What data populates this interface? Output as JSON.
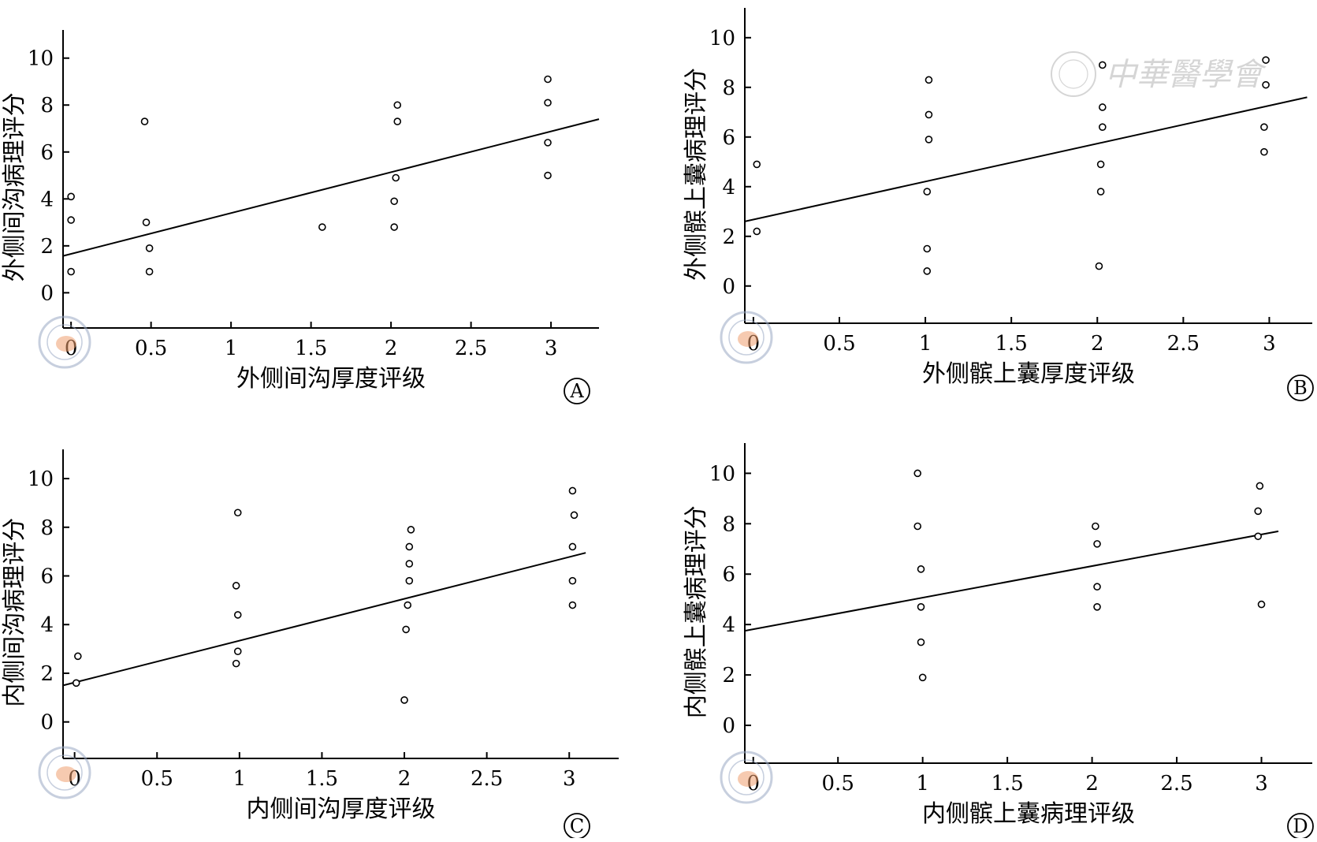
{
  "watermark": {
    "text": "中華醫學會"
  },
  "chart_data": [
    {
      "id": "A",
      "type": "scatter",
      "panel_label": "A",
      "xlabel": "外侧间沟厚度评级",
      "ylabel": "外侧间沟病理评分",
      "xlim": [
        -0.05,
        3.3
      ],
      "ylim": [
        -1.5,
        11.2
      ],
      "xticks": [
        0,
        0.5,
        1,
        1.5,
        2,
        2.5,
        3
      ],
      "xtick_labels": [
        "0",
        "0.5",
        "1",
        "1.5",
        "2",
        "2.5",
        "3"
      ],
      "yticks": [
        0,
        2,
        4,
        6,
        8,
        10
      ],
      "ytick_labels": [
        "0",
        "2",
        "4",
        "6",
        "8",
        "10"
      ],
      "points": [
        [
          0,
          0.9
        ],
        [
          0,
          3.1
        ],
        [
          0,
          4.1
        ],
        [
          0.46,
          7.3
        ],
        [
          0.47,
          3.0
        ],
        [
          0.49,
          1.9
        ],
        [
          0.49,
          0.9
        ],
        [
          1.57,
          2.8
        ],
        [
          2.02,
          2.8
        ],
        [
          2.02,
          3.9
        ],
        [
          2.03,
          4.9
        ],
        [
          2.04,
          7.3
        ],
        [
          2.04,
          8.0
        ],
        [
          2.98,
          5.0
        ],
        [
          2.98,
          6.4
        ],
        [
          2.98,
          8.1
        ],
        [
          2.98,
          9.1
        ]
      ],
      "fit_line": [
        [
          -0.05,
          1.57
        ],
        [
          3.3,
          7.4
        ]
      ]
    },
    {
      "id": "B",
      "type": "scatter",
      "panel_label": "B",
      "xlabel": "外侧髌上囊厚度评级",
      "ylabel": "外侧髌上囊病理评分",
      "xlim": [
        -0.05,
        3.25
      ],
      "ylim": [
        -1.5,
        11.2
      ],
      "xticks": [
        0,
        0.5,
        1,
        1.5,
        2,
        2.5,
        3
      ],
      "xtick_labels": [
        "0",
        "0.5",
        "1",
        "1.5",
        "2",
        "2.5",
        "3"
      ],
      "yticks": [
        0,
        2,
        4,
        6,
        8,
        10
      ],
      "ytick_labels": [
        "0",
        "2",
        "4",
        "6",
        "8",
        "10"
      ],
      "points": [
        [
          0.02,
          2.2
        ],
        [
          0.02,
          4.9
        ],
        [
          1.01,
          0.6
        ],
        [
          1.01,
          1.5
        ],
        [
          1.01,
          3.8
        ],
        [
          1.02,
          5.9
        ],
        [
          1.02,
          6.9
        ],
        [
          1.02,
          8.3
        ],
        [
          2.01,
          0.8
        ],
        [
          2.02,
          3.8
        ],
        [
          2.02,
          4.9
        ],
        [
          2.03,
          6.4
        ],
        [
          2.03,
          7.2
        ],
        [
          2.03,
          8.9
        ],
        [
          2.97,
          5.4
        ],
        [
          2.97,
          6.4
        ],
        [
          2.98,
          8.1
        ],
        [
          2.98,
          9.1
        ]
      ],
      "fit_line": [
        [
          -0.05,
          2.6
        ],
        [
          3.22,
          7.6
        ]
      ]
    },
    {
      "id": "C",
      "type": "scatter",
      "panel_label": "C",
      "xlabel": "内侧间沟厚度评级",
      "ylabel": "内侧间沟病理评分",
      "xlim": [
        -0.07,
        3.3
      ],
      "ylim": [
        -1.5,
        11.2
      ],
      "xticks": [
        0,
        0.5,
        1,
        1.5,
        2,
        2.5,
        3
      ],
      "xtick_labels": [
        "0",
        "0.5",
        "1",
        "1.5",
        "2",
        "2.5",
        "3"
      ],
      "yticks": [
        0,
        2,
        4,
        6,
        8,
        10
      ],
      "ytick_labels": [
        "0",
        "2",
        "4",
        "6",
        "8",
        "10"
      ],
      "points": [
        [
          0.01,
          1.6
        ],
        [
          0.02,
          2.7
        ],
        [
          0.98,
          2.4
        ],
        [
          0.99,
          2.9
        ],
        [
          0.99,
          4.4
        ],
        [
          0.98,
          5.6
        ],
        [
          0.99,
          8.6
        ],
        [
          2.0,
          0.9
        ],
        [
          2.01,
          3.8
        ],
        [
          2.02,
          4.8
        ],
        [
          2.03,
          5.8
        ],
        [
          2.03,
          6.5
        ],
        [
          2.03,
          7.2
        ],
        [
          2.04,
          7.9
        ],
        [
          3.02,
          4.8
        ],
        [
          3.02,
          5.8
        ],
        [
          3.02,
          7.2
        ],
        [
          3.03,
          8.5
        ],
        [
          3.02,
          9.5
        ]
      ],
      "fit_line": [
        [
          -0.07,
          1.5
        ],
        [
          3.1,
          6.95
        ]
      ]
    },
    {
      "id": "D",
      "type": "scatter",
      "panel_label": "D",
      "xlabel": "内侧髌上囊病理评级",
      "ylabel": "内侧髌上囊病理评分",
      "xlim": [
        -0.05,
        3.3
      ],
      "ylim": [
        -1.5,
        11.2
      ],
      "xticks": [
        0,
        0.5,
        1,
        1.5,
        2,
        2.5,
        3
      ],
      "xtick_labels": [
        "0",
        "0.5",
        "1",
        "1.5",
        "2",
        "2.5",
        "3"
      ],
      "yticks": [
        0,
        2,
        4,
        6,
        8,
        10
      ],
      "ytick_labels": [
        "0",
        "2",
        "4",
        "6",
        "8",
        "10"
      ],
      "points": [
        [
          0.97,
          10.0
        ],
        [
          0.97,
          7.9
        ],
        [
          0.99,
          6.2
        ],
        [
          0.99,
          4.7
        ],
        [
          0.99,
          3.3
        ],
        [
          1.0,
          1.9
        ],
        [
          2.03,
          4.7
        ],
        [
          2.03,
          5.5
        ],
        [
          2.03,
          7.2
        ],
        [
          2.02,
          7.9
        ],
        [
          2.98,
          7.5
        ],
        [
          2.98,
          8.5
        ],
        [
          2.99,
          9.5
        ],
        [
          3.0,
          4.8
        ]
      ],
      "fit_line": [
        [
          -0.05,
          3.75
        ],
        [
          3.1,
          7.7
        ]
      ]
    }
  ]
}
